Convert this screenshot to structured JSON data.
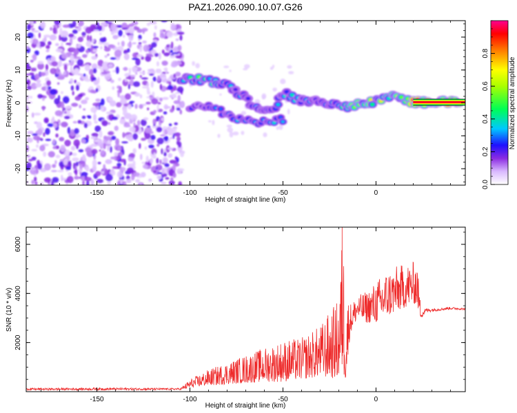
{
  "title": "PAZ1.2026.090.10.07.G26",
  "chart_data": [
    {
      "type": "heatmap",
      "name": "spectrogram",
      "xlabel": "Height of straight line (km)",
      "ylabel": "Frequency (Hz)",
      "xlim": [
        -188,
        48
      ],
      "ylim": [
        -25,
        25
      ],
      "xticks": [
        -150,
        -100,
        -50,
        0
      ],
      "xtick_labels": [
        "-150",
        "-100",
        "-50",
        "0"
      ],
      "yticks": [
        -20,
        -10,
        0,
        10,
        20
      ],
      "ytick_labels": [
        "-20",
        "-10",
        "0",
        "10",
        "20"
      ],
      "noise_region_x": [
        -188,
        -104
      ],
      "signal_track": {
        "x": [
          -105,
          -100,
          -95,
          -90,
          -85,
          -80,
          -75,
          -70,
          -65,
          -60,
          -55,
          -50,
          -45,
          -40,
          -35,
          -30,
          -25,
          -20,
          -15,
          -10,
          -5,
          0,
          5,
          10,
          15,
          20,
          25,
          30,
          35,
          40,
          45
        ],
        "f": [
          7,
          7.5,
          7,
          6.5,
          6.5,
          5.5,
          3,
          1.5,
          -1,
          -2,
          -2.5,
          3,
          2,
          0.5,
          0,
          1,
          0,
          -1,
          -1.5,
          -0.5,
          0,
          0.5,
          1.5,
          2,
          1,
          0.3,
          0.2,
          0.2,
          0.2,
          0.2,
          0.2
        ],
        "amplitude": [
          0.35,
          0.4,
          0.45,
          0.45,
          0.4,
          0.35,
          0.3,
          0.3,
          0.3,
          0.3,
          0.35,
          0.3,
          0.35,
          0.3,
          0.3,
          0.3,
          0.35,
          0.4,
          0.5,
          0.55,
          0.55,
          0.6,
          0.55,
          0.55,
          0.5,
          0.9,
          0.9,
          0.9,
          0.9,
          0.9,
          0.9
        ]
      },
      "secondary_track": {
        "x": [
          -100,
          -95,
          -90,
          -85,
          -80,
          -75,
          -70,
          -65,
          -60,
          -55,
          -50
        ],
        "f": [
          -1,
          -1,
          -1.5,
          -2,
          -3.5,
          -5,
          -5.5,
          -6,
          -6,
          -5.5,
          -5
        ],
        "amplitude": [
          0.25,
          0.25,
          0.25,
          0.3,
          0.3,
          0.35,
          0.3,
          0.3,
          0.3,
          0.35,
          0.35
        ]
      }
    },
    {
      "type": "colorbar",
      "name": "amplitude-colorbar",
      "label": "Normalized spectral amplitude",
      "range": [
        0,
        1
      ],
      "ticks": [
        0.0,
        0.2,
        0.4,
        0.6,
        0.8
      ],
      "tick_labels": [
        "0.0",
        "0.2",
        "0.4",
        "0.6",
        "0.8"
      ]
    },
    {
      "type": "line",
      "name": "snr",
      "xlabel": "Height of straight line (km)",
      "ylabel": "SNR (10 * v/v)",
      "xlim": [
        -188,
        48
      ],
      "ylim": [
        0,
        6700
      ],
      "xticks": [
        -150,
        -100,
        -50,
        0
      ],
      "xtick_labels": [
        "-150",
        "-100",
        "-50",
        "0"
      ],
      "yticks": [
        2000,
        4000,
        6000
      ],
      "ytick_labels": [
        "2000",
        "4000",
        "6000"
      ],
      "color": "#ee2a2a",
      "envelope": {
        "x": [
          -188,
          -150,
          -105,
          -100,
          -90,
          -80,
          -70,
          -60,
          -50,
          -40,
          -30,
          -20,
          -18,
          -16,
          -14,
          -10,
          -5,
          0,
          5,
          10,
          15,
          20,
          22,
          24,
          26,
          30,
          40,
          48
        ],
        "low": [
          60,
          60,
          70,
          150,
          250,
          300,
          350,
          400,
          400,
          500,
          600,
          500,
          700,
          300,
          2300,
          3000,
          2800,
          2800,
          3000,
          3200,
          3400,
          3600,
          3500,
          3000,
          3100,
          3200,
          3300,
          3300
        ],
        "high": [
          150,
          170,
          150,
          500,
          900,
          1200,
          1500,
          1800,
          2100,
          2200,
          2700,
          3800,
          6700,
          4200,
          3600,
          3900,
          4100,
          4500,
          4900,
          5100,
          5200,
          5300,
          5400,
          3500,
          3400,
          3400,
          3450,
          3400
        ]
      }
    }
  ]
}
